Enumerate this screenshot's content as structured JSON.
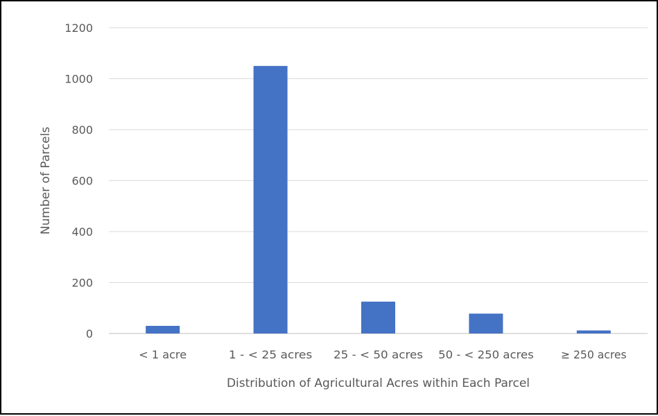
{
  "chart_data": {
    "type": "bar",
    "categories": [
      "< 1 acre",
      "1 - < 25 acres",
      "25 - < 50 acres",
      "50 - < 250 acres",
      "≥ 250 acres"
    ],
    "values": [
      30,
      1050,
      125,
      78,
      12
    ],
    "title": "",
    "xlabel": "Distribution of Agricultural Acres within Each Parcel",
    "ylabel": "Number of Parcels",
    "ylim": [
      0,
      1200
    ],
    "yticks": [
      0,
      200,
      400,
      600,
      800,
      1000,
      1200
    ],
    "grid": true,
    "legend": "none",
    "bar_color": "#4472C4",
    "grid_color": "#D9D9D9"
  }
}
